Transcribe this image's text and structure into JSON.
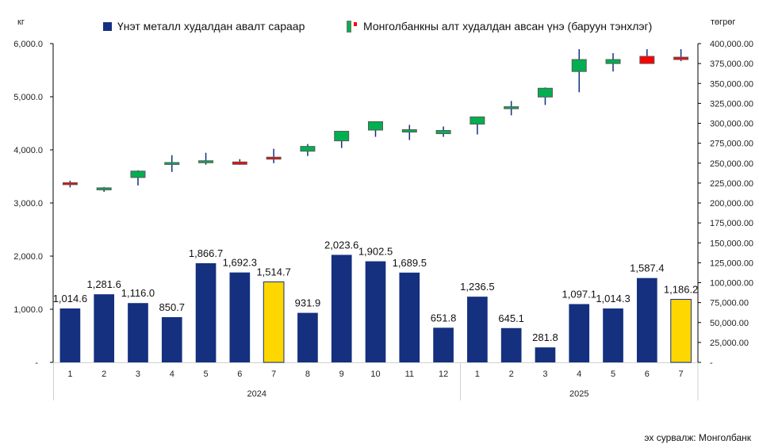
{
  "chart_data": {
    "type": "bar",
    "title": "",
    "legend": [
      {
        "name": "Үнэт металл худалдан авалт сараар",
        "marker": "square",
        "color": "#14307F"
      },
      {
        "name": "Монголбанкны алт худалдан авсан үнэ (баруун тэнхлэг)",
        "marker": "candlestick",
        "up_color": "#00B050",
        "down_color": "#FF0000"
      }
    ],
    "left_axis": {
      "unit": "кг",
      "range": [
        0,
        6000
      ],
      "ticks": [
        "-",
        "1,000.0",
        "2,000.0",
        "3,000.0",
        "4,000.0",
        "5,000.0",
        "6,000.0"
      ]
    },
    "right_axis": {
      "unit": "төгрөг",
      "range": [
        0,
        400000
      ],
      "ticks": [
        "-",
        "25,000.00",
        "50,000.00",
        "75,000.00",
        "100,000.00",
        "125,000.00",
        "150,000.00",
        "175,000.00",
        "200,000.00",
        "225,000.00",
        "250,000.00",
        "275,000.00",
        "300,000.00",
        "325,000.00",
        "350,000.00",
        "375,000.00",
        "400,000.00"
      ]
    },
    "categories": [
      "1",
      "2",
      "3",
      "4",
      "5",
      "6",
      "7",
      "8",
      "9",
      "10",
      "11",
      "12",
      "1",
      "2",
      "3",
      "4",
      "5",
      "6",
      "7"
    ],
    "years": [
      {
        "label": "2024",
        "count": 12
      },
      {
        "label": "2025",
        "count": 7
      }
    ],
    "series": [
      {
        "name": "Үнэт металл худалдан авалт сараар",
        "type": "bar",
        "values": [
          1014.6,
          1281.6,
          1116.0,
          850.7,
          1866.7,
          1692.3,
          1514.7,
          931.9,
          2023.6,
          1902.5,
          1689.5,
          651.8,
          1236.5,
          645.1,
          281.8,
          1097.1,
          1014.3,
          1587.4,
          1186.2
        ],
        "labels": [
          "1,014.6",
          "1,281.6",
          "1,116.0",
          "850.7",
          "1,866.7",
          "1,692.3",
          "1,514.7",
          "931.9",
          "2,023.6",
          "1,902.5",
          "1,689.5",
          "651.8",
          "1,236.5",
          "645.1",
          "281.8",
          "1,097.1",
          "1,014.3",
          "1,587.4",
          "1,186.2"
        ],
        "highlight_indices": [
          6,
          18
        ],
        "color": "#14307F",
        "highlight_color": "#FFD700"
      },
      {
        "name": "Монголбанкны алт худалдан авсан үнэ (баруун тэнхлэг)",
        "type": "candlestick",
        "ohlc": [
          [
            225500,
            228000,
            219500,
            223000
          ],
          [
            216500,
            220000,
            214000,
            219000
          ],
          [
            232000,
            241000,
            222000,
            240000
          ],
          [
            250000,
            260000,
            239000,
            250800
          ],
          [
            250500,
            263000,
            248000,
            253000
          ],
          [
            251500,
            255000,
            248000,
            248500
          ],
          [
            257500,
            268000,
            250000,
            255500
          ],
          [
            265000,
            274000,
            259000,
            271000
          ],
          [
            278000,
            290000,
            269000,
            290000
          ],
          [
            291500,
            302000,
            283000,
            302000
          ],
          [
            289000,
            298000,
            279000,
            292000
          ],
          [
            287000,
            296000,
            283000,
            291000
          ],
          [
            299000,
            308000,
            286000,
            308000
          ],
          [
            320000,
            328000,
            310000,
            320800
          ],
          [
            333000,
            345000,
            323000,
            344000
          ],
          [
            365000,
            393000,
            339000,
            380000
          ],
          [
            375000,
            388000,
            365000,
            380000
          ],
          [
            384000,
            393000,
            375000,
            375000
          ],
          [
            383000,
            393000,
            378000,
            380000
          ]
        ]
      }
    ],
    "source": "эх сурвалж: Монголбанк"
  }
}
